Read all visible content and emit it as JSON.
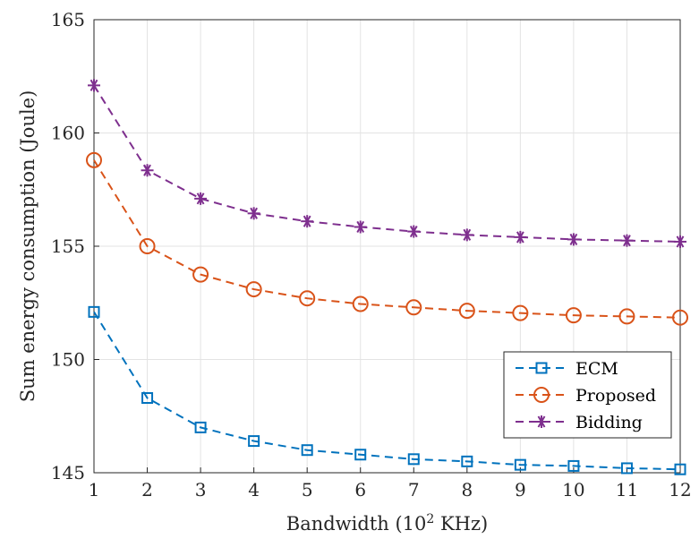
{
  "chart_data": {
    "type": "line",
    "xlabel_main": "Bandwidth (10",
    "xlabel_sup": "2",
    "xlabel_end": " KHz)",
    "ylabel": "Sum energy consumption (Joule)",
    "x": [
      1,
      2,
      3,
      4,
      5,
      6,
      7,
      8,
      9,
      10,
      11,
      12
    ],
    "xlim": [
      1,
      12
    ],
    "ylim": [
      145,
      165
    ],
    "xticks": [
      "1",
      "2",
      "3",
      "4",
      "5",
      "6",
      "7",
      "8",
      "9",
      "10",
      "11",
      "12"
    ],
    "yticks": [
      "145",
      "150",
      "155",
      "160",
      "165"
    ],
    "grid": true,
    "legend_position": "bottom-right",
    "series": [
      {
        "name": "ECM",
        "color": "#0072BD",
        "marker": "square",
        "values": [
          152.1,
          148.3,
          147.0,
          146.4,
          146.0,
          145.8,
          145.6,
          145.5,
          145.35,
          145.3,
          145.2,
          145.15
        ]
      },
      {
        "name": "Proposed",
        "color": "#D95319",
        "marker": "circle",
        "values": [
          158.8,
          155.0,
          153.75,
          153.1,
          152.7,
          152.45,
          152.3,
          152.15,
          152.05,
          151.95,
          151.9,
          151.85
        ]
      },
      {
        "name": "Bidding",
        "color": "#7E2F8E",
        "marker": "asterisk",
        "values": [
          162.1,
          158.35,
          157.1,
          156.45,
          156.1,
          155.85,
          155.65,
          155.5,
          155.4,
          155.3,
          155.25,
          155.2
        ]
      }
    ]
  }
}
